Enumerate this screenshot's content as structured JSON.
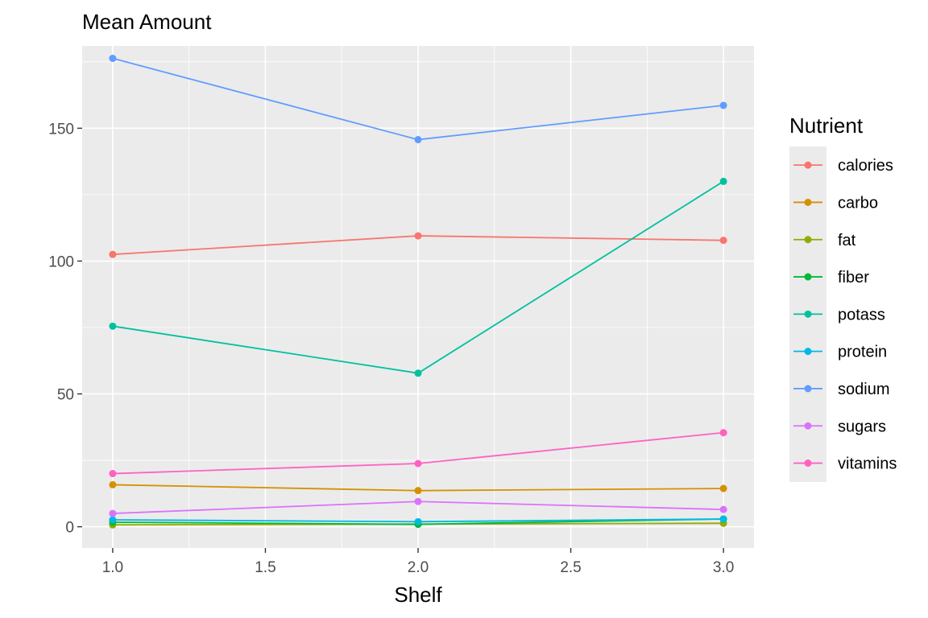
{
  "chart_data": {
    "type": "line",
    "title": "Mean Amount",
    "xlabel": "Shelf",
    "ylabel": "",
    "x": [
      1.0,
      2.0,
      3.0
    ],
    "xlim": [
      0.9,
      3.1
    ],
    "ylim": [
      -8,
      181
    ],
    "x_ticks": [
      1.0,
      1.5,
      2.0,
      2.5,
      3.0
    ],
    "x_tick_labels": [
      "1.0",
      "1.5",
      "2.0",
      "2.5",
      "3.0"
    ],
    "y_ticks": [
      0,
      50,
      100,
      150
    ],
    "y_tick_labels": [
      "0",
      "50",
      "100",
      "150"
    ],
    "grid": true,
    "legend": {
      "title": "Nutrient",
      "position": "right"
    },
    "series": [
      {
        "name": "calories",
        "color": "#F8766D",
        "values": [
          102.5,
          109.5,
          107.8
        ]
      },
      {
        "name": "carbo",
        "color": "#D39200",
        "values": [
          15.8,
          13.6,
          14.4
        ]
      },
      {
        "name": "fat",
        "color": "#93AA00",
        "values": [
          0.7,
          1.0,
          1.3
        ]
      },
      {
        "name": "fiber",
        "color": "#00BA38",
        "values": [
          1.7,
          0.9,
          2.9
        ]
      },
      {
        "name": "potass",
        "color": "#00C19F",
        "values": [
          75.5,
          57.8,
          130.0
        ]
      },
      {
        "name": "protein",
        "color": "#00B9E3",
        "values": [
          2.6,
          1.9,
          2.9
        ]
      },
      {
        "name": "sodium",
        "color": "#619CFF",
        "values": [
          176.3,
          145.7,
          158.6
        ]
      },
      {
        "name": "sugars",
        "color": "#DB72FB",
        "values": [
          5.0,
          9.5,
          6.5
        ]
      },
      {
        "name": "vitamins",
        "color": "#FF61C3",
        "values": [
          20.0,
          23.8,
          35.4
        ]
      }
    ]
  }
}
